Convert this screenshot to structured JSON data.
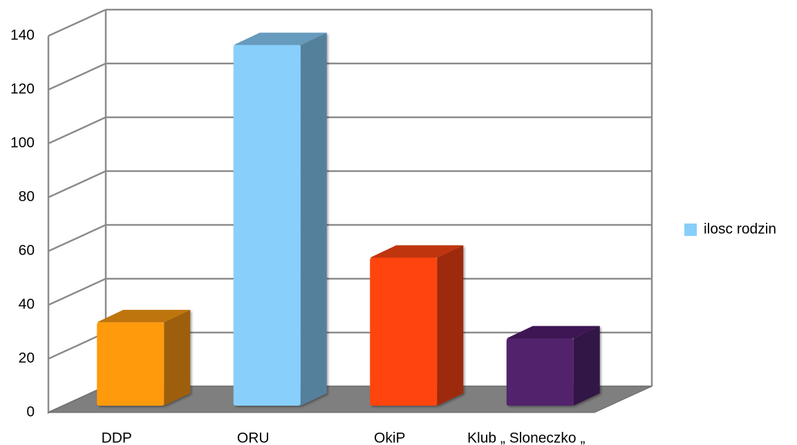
{
  "chart_data": {
    "type": "bar3d",
    "categories": [
      "DDP",
      "ORU",
      "OkiP",
      "Klub „ Sloneczko „"
    ],
    "series": [
      {
        "name": "ilosc rodzin",
        "color": "#87cefa",
        "values": [
          31,
          134,
          55,
          25
        ]
      }
    ],
    "colors": [
      "#ff9a0e",
      "#88cffc",
      "#ff4511",
      "#52206d"
    ],
    "ylim": [
      0,
      140
    ],
    "yticks": [
      0,
      20,
      40,
      60,
      80,
      100,
      120,
      140
    ],
    "grid": true,
    "legend": "right"
  }
}
